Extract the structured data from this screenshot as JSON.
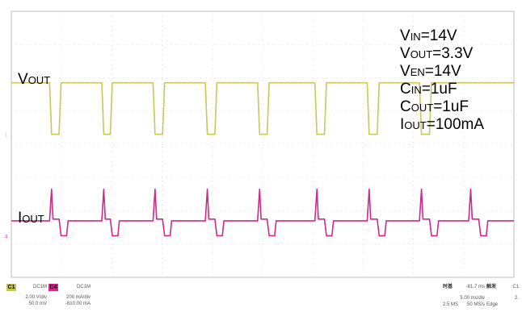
{
  "chart_data": {
    "type": "line",
    "title": "",
    "xlabel": "",
    "ylabel": "",
    "grid": true,
    "grid_divisions": {
      "x": 10,
      "y": 8
    },
    "xlim": [
      0,
      10
    ],
    "ylim": [
      0,
      8
    ],
    "series": [
      {
        "name": "VOUT",
        "color": "#c8c85a",
        "points": [
          [
            0,
            5.85
          ],
          [
            0.76,
            5.85
          ],
          [
            0.8,
            4.3
          ],
          [
            0.95,
            4.3
          ],
          [
            0.99,
            5.85
          ],
          [
            1.8,
            5.85
          ],
          [
            1.84,
            4.3
          ],
          [
            1.97,
            4.3
          ],
          [
            2.01,
            5.85
          ],
          [
            2.82,
            5.85
          ],
          [
            2.86,
            4.3
          ],
          [
            3.01,
            4.3
          ],
          [
            3.05,
            5.85
          ],
          [
            3.86,
            5.85
          ],
          [
            3.9,
            4.3
          ],
          [
            4.05,
            4.3
          ],
          [
            4.09,
            5.85
          ],
          [
            4.9,
            5.85
          ],
          [
            4.94,
            4.3
          ],
          [
            5.09,
            4.3
          ],
          [
            5.13,
            5.85
          ],
          [
            6.04,
            5.85
          ],
          [
            6.08,
            4.3
          ],
          [
            6.23,
            4.3
          ],
          [
            6.27,
            5.85
          ],
          [
            7.08,
            5.85
          ],
          [
            7.12,
            4.3
          ],
          [
            7.28,
            4.3
          ],
          [
            7.32,
            5.85
          ],
          [
            8.12,
            5.85
          ],
          [
            8.16,
            4.3
          ],
          [
            8.32,
            4.3
          ],
          [
            8.36,
            5.85
          ],
          [
            10,
            5.85
          ]
        ]
      },
      {
        "name": "IOUT",
        "color": "#cc2a8c",
        "points": [
          [
            0,
            1.7
          ],
          [
            0.76,
            1.7
          ],
          [
            0.8,
            2.65
          ],
          [
            0.83,
            1.75
          ],
          [
            0.95,
            1.75
          ],
          [
            0.99,
            1.25
          ],
          [
            1.1,
            1.25
          ],
          [
            1.13,
            1.7
          ],
          [
            1.8,
            1.7
          ],
          [
            1.84,
            2.65
          ],
          [
            1.87,
            1.75
          ],
          [
            1.97,
            1.75
          ],
          [
            2.01,
            1.25
          ],
          [
            2.12,
            1.25
          ],
          [
            2.15,
            1.7
          ],
          [
            2.82,
            1.7
          ],
          [
            2.86,
            2.65
          ],
          [
            2.89,
            1.75
          ],
          [
            3.01,
            1.75
          ],
          [
            3.05,
            1.25
          ],
          [
            3.16,
            1.25
          ],
          [
            3.19,
            1.7
          ],
          [
            3.86,
            1.7
          ],
          [
            3.9,
            2.65
          ],
          [
            3.93,
            1.75
          ],
          [
            4.05,
            1.75
          ],
          [
            4.09,
            1.25
          ],
          [
            4.2,
            1.25
          ],
          [
            4.23,
            1.7
          ],
          [
            4.9,
            1.7
          ],
          [
            4.94,
            2.65
          ],
          [
            4.97,
            1.75
          ],
          [
            5.09,
            1.75
          ],
          [
            5.13,
            1.25
          ],
          [
            5.24,
            1.25
          ],
          [
            5.27,
            1.7
          ],
          [
            6.04,
            1.7
          ],
          [
            6.08,
            2.65
          ],
          [
            6.11,
            1.75
          ],
          [
            6.23,
            1.75
          ],
          [
            6.27,
            1.25
          ],
          [
            6.38,
            1.25
          ],
          [
            6.41,
            1.7
          ],
          [
            7.08,
            1.7
          ],
          [
            7.12,
            2.65
          ],
          [
            7.15,
            1.75
          ],
          [
            7.28,
            1.75
          ],
          [
            7.32,
            1.25
          ],
          [
            7.43,
            1.25
          ],
          [
            7.46,
            1.7
          ],
          [
            8.12,
            1.7
          ],
          [
            8.16,
            2.65
          ],
          [
            8.19,
            1.75
          ],
          [
            8.32,
            1.75
          ],
          [
            8.36,
            1.25
          ],
          [
            8.47,
            1.25
          ],
          [
            8.5,
            1.7
          ],
          [
            9.1,
            1.7
          ],
          [
            9.14,
            2.65
          ],
          [
            9.17,
            1.75
          ],
          [
            9.3,
            1.75
          ],
          [
            9.34,
            1.25
          ],
          [
            9.45,
            1.25
          ],
          [
            9.48,
            1.7
          ],
          [
            10,
            1.7
          ]
        ]
      }
    ],
    "trace_labels": [
      {
        "main": "V",
        "sub": "OUT"
      },
      {
        "main": "I",
        "sub": "OUT"
      }
    ],
    "annotations": [
      {
        "main": "V",
        "sub": "IN",
        "rest": "=14V"
      },
      {
        "main": "V",
        "sub": "OUT",
        "rest": "=3.3V"
      },
      {
        "main": "V",
        "sub": "EN",
        "rest": "=14V"
      },
      {
        "main": "C",
        "sub": "IN",
        "rest": "=1uF"
      },
      {
        "main": "C",
        "sub": "OUT",
        "rest": "=1uF"
      },
      {
        "main": "I",
        "sub": "OUT",
        "rest": "=100mA"
      }
    ]
  },
  "status_bar": {
    "ch1": {
      "tag": "C1",
      "tag_color": "#c8c85a",
      "coupling": "DC1M",
      "scale": "2.00 V/div",
      "offset": "50.0 mV"
    },
    "ch4": {
      "tag": "C4",
      "tag_color": "#cc2a8c",
      "coupling": "DC1M",
      "scale": "200 mA/div",
      "offset": "-610.00 mA"
    },
    "timebase": {
      "label": "时基",
      "position": "-81.7 ms",
      "scale": "5.00 ms/div",
      "samples": "2.5 MS",
      "rate": "50 MS/s"
    },
    "trigger": {
      "label": "触发",
      "source": "C1",
      "level": "2.",
      "mode": "Edge"
    }
  }
}
